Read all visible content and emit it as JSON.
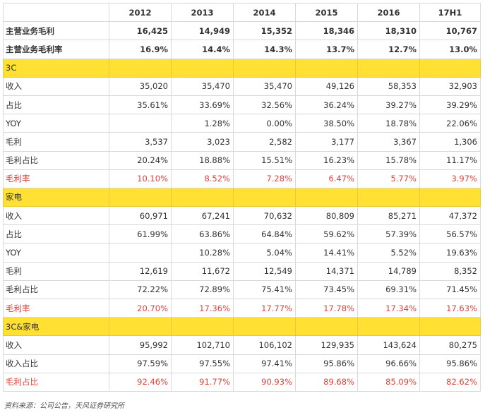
{
  "table": {
    "headers": [
      "",
      "2012",
      "2013",
      "2014",
      "2015",
      "2016",
      "17H1"
    ],
    "rows": [
      {
        "type": "bold",
        "cells": [
          "主营业务毛利",
          "16,425",
          "14,949",
          "15,352",
          "18,346",
          "18,310",
          "10,767"
        ]
      },
      {
        "type": "bold",
        "cells": [
          "主营业务毛利率",
          "16.9%",
          "14.4%",
          "14.3%",
          "13.7%",
          "12.7%",
          "13.0%"
        ]
      },
      {
        "type": "section",
        "cells": [
          "3C",
          "",
          "",
          "",
          "",
          "",
          ""
        ]
      },
      {
        "type": "normal",
        "cells": [
          "收入",
          "35,020",
          "35,470",
          "35,470",
          "49,126",
          "58,353",
          "32,903"
        ]
      },
      {
        "type": "normal",
        "cells": [
          "占比",
          "35.61%",
          "33.69%",
          "32.56%",
          "36.24%",
          "39.27%",
          "39.29%"
        ]
      },
      {
        "type": "normal",
        "cells": [
          "YOY",
          "",
          "1.28%",
          "0.00%",
          "38.50%",
          "18.78%",
          "22.06%"
        ]
      },
      {
        "type": "normal",
        "cells": [
          "毛利",
          "3,537",
          "3,023",
          "2,582",
          "3,177",
          "3,367",
          "1,306"
        ]
      },
      {
        "type": "normal",
        "cells": [
          "毛利占比",
          "20.24%",
          "18.88%",
          "15.51%",
          "16.23%",
          "15.78%",
          "11.17%"
        ]
      },
      {
        "type": "red",
        "cells": [
          "毛利率",
          "10.10%",
          "8.52%",
          "7.28%",
          "6.47%",
          "5.77%",
          "3.97%"
        ]
      },
      {
        "type": "section",
        "cells": [
          "家电",
          "",
          "",
          "",
          "",
          "",
          ""
        ]
      },
      {
        "type": "normal",
        "cells": [
          "收入",
          "60,971",
          "67,241",
          "70,632",
          "80,809",
          "85,271",
          "47,372"
        ]
      },
      {
        "type": "normal",
        "cells": [
          "占比",
          "61.99%",
          "63.86%",
          "64.84%",
          "59.62%",
          "57.39%",
          "56.57%"
        ]
      },
      {
        "type": "normal",
        "cells": [
          "YOY",
          "",
          "10.28%",
          "5.04%",
          "14.41%",
          "5.52%",
          "19.63%"
        ]
      },
      {
        "type": "normal",
        "cells": [
          "毛利",
          "12,619",
          "11,672",
          "12,549",
          "14,371",
          "14,789",
          "8,352"
        ]
      },
      {
        "type": "normal",
        "cells": [
          "毛利占比",
          "72.22%",
          "72.89%",
          "75.41%",
          "73.45%",
          "69.31%",
          "71.45%"
        ]
      },
      {
        "type": "red",
        "cells": [
          "毛利率",
          "20.70%",
          "17.36%",
          "17.77%",
          "17.78%",
          "17.34%",
          "17.63%"
        ]
      },
      {
        "type": "section",
        "cells": [
          "3C&家电",
          "",
          "",
          "",
          "",
          "",
          ""
        ]
      },
      {
        "type": "normal",
        "cells": [
          "收入",
          "95,992",
          "102,710",
          "106,102",
          "129,935",
          "143,624",
          "80,275"
        ]
      },
      {
        "type": "normal",
        "cells": [
          "收入占比",
          "97.59%",
          "97.55%",
          "97.41%",
          "95.86%",
          "96.66%",
          "95.86%"
        ]
      },
      {
        "type": "red",
        "cells": [
          "毛利占比",
          "92.46%",
          "91.77%",
          "90.93%",
          "89.68%",
          "85.09%",
          "82.62%"
        ]
      }
    ]
  },
  "source": "资料来源：公司公告，天风证券研究所",
  "colors": {
    "section_bg": "#ffe033",
    "red_text": "#e0413a",
    "border": "#d9d9d9"
  }
}
